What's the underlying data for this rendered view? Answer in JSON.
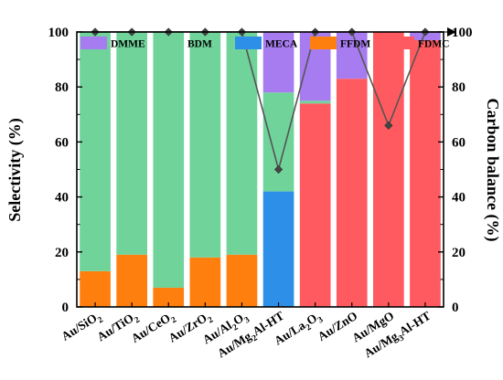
{
  "chart_data": {
    "type": "bar",
    "stacked": true,
    "categories": [
      {
        "base": "Au/SiO",
        "sub": "2",
        "tail": ""
      },
      {
        "base": "Au/TiO",
        "sub": "2",
        "tail": ""
      },
      {
        "base": "Au/CeO",
        "sub": "2",
        "tail": ""
      },
      {
        "base": "Au/ZrO",
        "sub": "2",
        "tail": ""
      },
      {
        "base": "Au/Al",
        "sub": "2",
        "tail": "O",
        "sub2": "3"
      },
      {
        "base": "Au/Mg",
        "sub": "2",
        "tail": "Al-HT"
      },
      {
        "base": "Au/La",
        "sub": "2",
        "tail": "O",
        "sub2": "3"
      },
      {
        "base": "Au/ZnO",
        "sub": "",
        "tail": ""
      },
      {
        "base": "Au/MgO",
        "sub": "",
        "tail": ""
      },
      {
        "base": "Au/Mg",
        "sub": "3",
        "tail": "Al-HT"
      }
    ],
    "series": [
      {
        "name": "FFDM",
        "color": "#ff7f0e",
        "values": [
          13,
          19,
          7,
          18,
          19,
          0,
          0,
          0,
          0,
          0
        ]
      },
      {
        "name": "MECA",
        "color": "#2e8fe8",
        "values": [
          0,
          0,
          0,
          0,
          0,
          42,
          0,
          0,
          0,
          0
        ]
      },
      {
        "name": "FDMC",
        "color": "#ff5a5f",
        "values": [
          0,
          0,
          0,
          0,
          0,
          0,
          74,
          83,
          100,
          97
        ]
      },
      {
        "name": "BDM",
        "color": "#6fd39a",
        "values": [
          87,
          81,
          93,
          82,
          81,
          36,
          1,
          0,
          0,
          0
        ]
      },
      {
        "name": "DMME",
        "color": "#a77cf0",
        "values": [
          0,
          0,
          0,
          0,
          0,
          22,
          25,
          17,
          0,
          3
        ]
      }
    ],
    "carbon_balance": {
      "color": "#555555",
      "values": [
        100,
        100,
        100,
        100,
        100,
        50,
        100,
        100,
        66,
        100
      ]
    },
    "ylabel": "Selectivity (%)",
    "y2label": "Carbon balance (%)",
    "ylim": [
      0,
      100
    ],
    "y2lim": [
      0,
      100
    ],
    "yticks": [
      0,
      20,
      40,
      60,
      80,
      100
    ],
    "legend": [
      {
        "name": "DMME",
        "color": "#a77cf0"
      },
      {
        "name": "BDM",
        "color": "#6fd39a"
      },
      {
        "name": "MECA",
        "color": "#2e8fe8"
      },
      {
        "name": "FFDM",
        "color": "#ff7f0e"
      },
      {
        "name": "FDMC",
        "color": "#ff5a5f"
      }
    ],
    "legend_position": "top"
  }
}
